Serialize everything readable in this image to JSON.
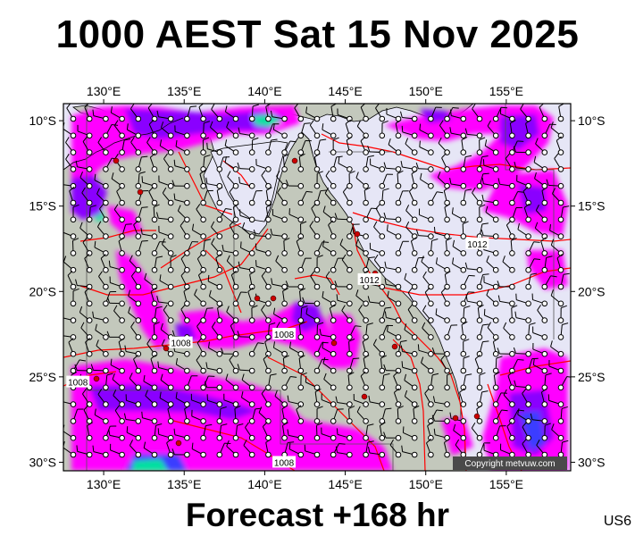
{
  "title": "1000 AEST Sat 15 Nov 2025",
  "subtitle": "Forecast +168 hr",
  "region_code": "US6",
  "copyright": "Copyright metvuw.com",
  "map": {
    "lon_range": [
      127.5,
      159
    ],
    "lat_range": [
      -30.5,
      -9
    ],
    "lon_ticks": [
      130,
      135,
      140,
      145,
      150,
      155
    ],
    "lat_ticks": [
      -10,
      -15,
      -20,
      -25,
      -30
    ],
    "lon_tick_labels_top": [
      "130°E",
      "135°E",
      "140°E",
      "145°E",
      "150°E",
      "155°E"
    ],
    "lon_tick_labels_bottom": [
      "130°E",
      "135°E",
      "140°E",
      "145°E",
      "150°E",
      "155°E"
    ],
    "lat_tick_labels_left": [
      "10°S",
      "15°S",
      "20°S",
      "25°S",
      "30°S"
    ],
    "lat_tick_labels_right": [
      "10°S",
      "15°S",
      "20°S",
      "25°S",
      "30°S"
    ],
    "isobar_labels": [
      {
        "text": "1012",
        "lon": 153.2,
        "lat": -17.2
      },
      {
        "text": "1012",
        "lon": 146.5,
        "lat": -19.3
      },
      {
        "text": "1008",
        "lon": 134.8,
        "lat": -23.0
      },
      {
        "text": "1008",
        "lon": 141.2,
        "lat": -22.5
      },
      {
        "text": "1008",
        "lon": 128.4,
        "lat": -25.3
      },
      {
        "text": "1008",
        "lon": 141.2,
        "lat": -30.0
      }
    ],
    "colors": {
      "ocean": "#e6e6f6",
      "land": "#c3c8bc",
      "isobar": "#ff0000",
      "rain_light": "#ff00ff",
      "rain_medium": "#8a00ff",
      "rain_heavy": "#3a3cff",
      "rain_extreme": "#00e0a0",
      "coast": "#000000"
    }
  }
}
